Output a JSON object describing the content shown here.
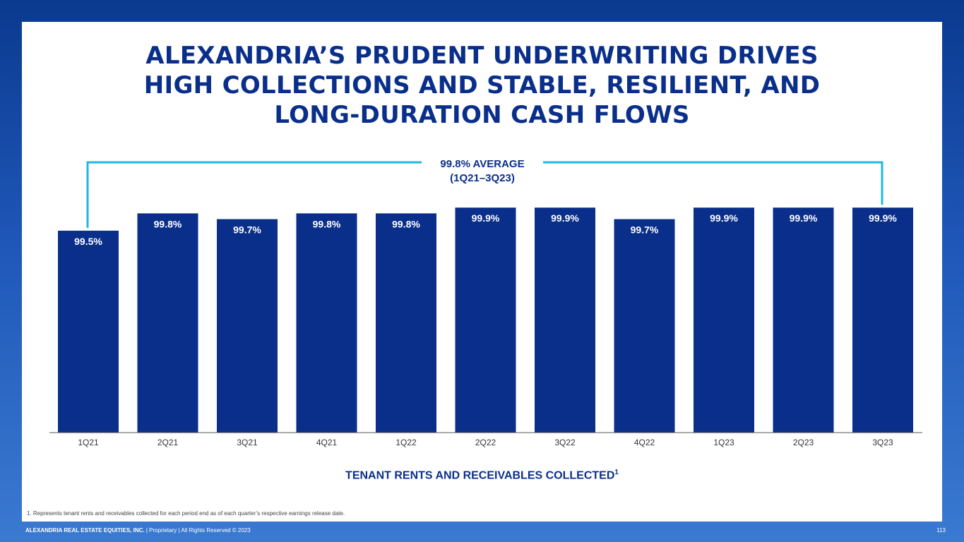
{
  "slide": {
    "title_lines": [
      "ALEXANDRIA’S PRUDENT UNDERWRITING DRIVES",
      "HIGH COLLECTIONS AND STABLE, RESILIENT, AND",
      "LONG-DURATION CASH FLOWS"
    ],
    "footnote": "1.   Represents tenant rents and receivables collected for each period end as of each quarter’s respective earnings release date.",
    "footer_company": "ALEXANDRIA REAL ESTATE EQUITIES, INC.",
    "footer_rest": " | Proprietary | All Rights Reserved © 2023",
    "page_number": "113"
  },
  "chart_data": {
    "type": "bar",
    "categories": [
      "1Q21",
      "2Q21",
      "3Q21",
      "4Q21",
      "1Q22",
      "2Q22",
      "3Q22",
      "4Q22",
      "1Q23",
      "2Q23",
      "3Q23"
    ],
    "values": [
      99.5,
      99.8,
      99.7,
      99.8,
      99.8,
      99.9,
      99.9,
      99.7,
      99.9,
      99.9,
      99.9
    ],
    "data_labels": [
      "99.5%",
      "99.8%",
      "99.7%",
      "99.8%",
      "99.8%",
      "99.9%",
      "99.9%",
      "99.7%",
      "99.9%",
      "99.9%",
      "99.9%"
    ],
    "xlabel": "TENANT RENTS AND RECEIVABLES COLLECTED",
    "xlabel_superscript": "1",
    "annotation": {
      "line1": "99.8% AVERAGE",
      "line2": "(1Q21–3Q23)"
    },
    "bar_color": "#0a2f8a",
    "bracket_color": "#1fb8e0",
    "grid": false,
    "legend": "none"
  }
}
